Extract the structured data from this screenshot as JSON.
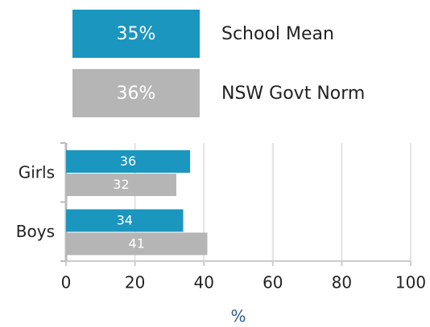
{
  "chart_data": {
    "type": "hbar",
    "categories": [
      "Girls",
      "Boys"
    ],
    "series": [
      {
        "name": "School Mean",
        "color": "#1a96bf",
        "values": [
          36,
          34
        ],
        "mean": {
          "value": 35,
          "label": "35%"
        }
      },
      {
        "name": "NSW Govt Norm",
        "color": "#b5b5b5",
        "values": [
          32,
          41
        ],
        "mean": {
          "value": 36,
          "label": "36%"
        }
      }
    ],
    "xlabel": "%",
    "xlim": [
      0,
      100
    ],
    "xticks": [
      0,
      20,
      40,
      60,
      80,
      100
    ],
    "grid": true
  }
}
